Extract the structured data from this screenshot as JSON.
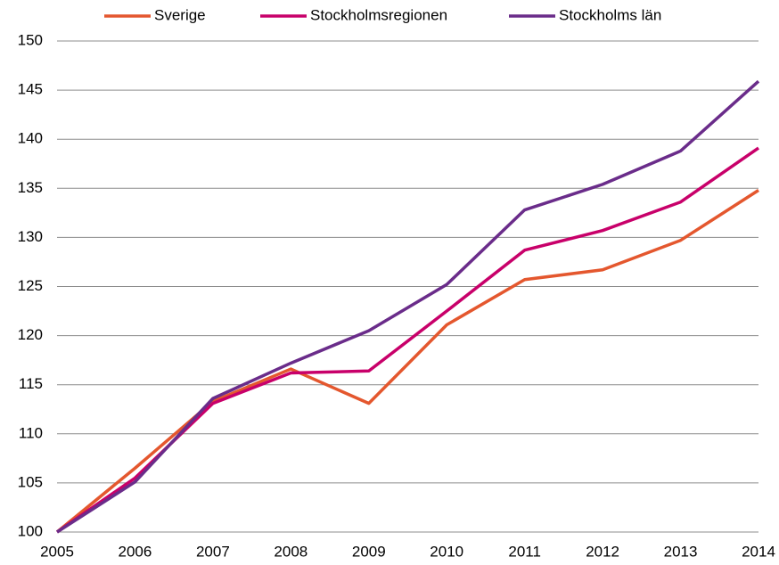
{
  "chart_data": {
    "type": "line",
    "categories": [
      "2005",
      "2006",
      "2007",
      "2008",
      "2009",
      "2010",
      "2011",
      "2012",
      "2013",
      "2014"
    ],
    "series": [
      {
        "name": "Sverige",
        "color": "#e4572e",
        "values": [
          100,
          106.5,
          113.3,
          116.6,
          113.1,
          121.1,
          125.7,
          126.7,
          129.7,
          134.8
        ]
      },
      {
        "name": "Stockholmsregionen",
        "color": "#c8006a",
        "values": [
          100,
          105.5,
          113.1,
          116.2,
          116.4,
          122.5,
          128.7,
          130.7,
          133.6,
          139.1
        ]
      },
      {
        "name": "Stockholms län",
        "color": "#6a2c8a",
        "values": [
          100,
          105.1,
          113.6,
          117.2,
          120.5,
          125.2,
          132.8,
          135.4,
          138.8,
          145.9
        ]
      }
    ],
    "ylim": [
      100,
      150
    ],
    "yticks": [
      100,
      105,
      110,
      115,
      120,
      125,
      130,
      135,
      140,
      145,
      150
    ],
    "grid": true,
    "legend": "top"
  }
}
